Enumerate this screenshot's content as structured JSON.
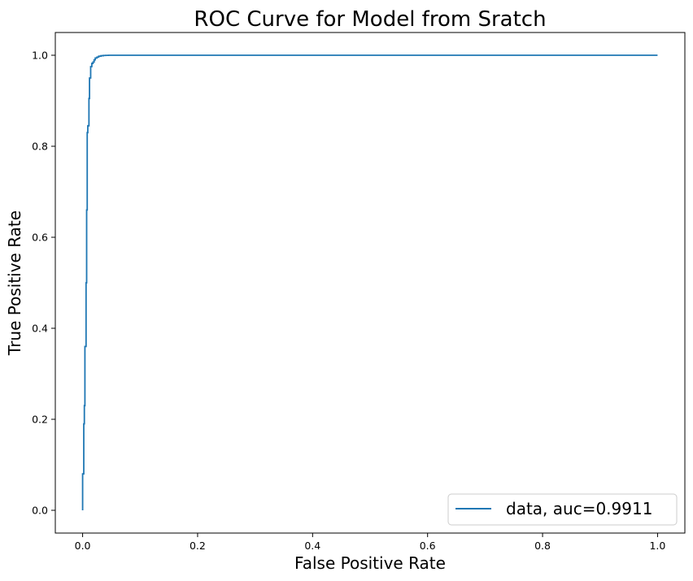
{
  "chart_data": {
    "type": "line",
    "title": "ROC Curve for Model from Sratch",
    "xlabel": "False Positive Rate",
    "ylabel": "True Positive Rate",
    "xlim": [
      -0.0475,
      1.0475
    ],
    "ylim": [
      -0.05,
      1.05
    ],
    "xticks": [
      0.0,
      0.2,
      0.4,
      0.6,
      0.8,
      1.0
    ],
    "xtick_labels": [
      "0.0",
      "0.2",
      "0.4",
      "0.6",
      "0.8",
      "1.0"
    ],
    "yticks": [
      0.0,
      0.2,
      0.4,
      0.6,
      0.8,
      1.0
    ],
    "ytick_labels": [
      "0.0",
      "0.2",
      "0.4",
      "0.6",
      "0.8",
      "1.0"
    ],
    "grid": false,
    "legend_position": "lower-right",
    "series": [
      {
        "name": "data, auc=0.9911",
        "color": "#1f77b4",
        "x": [
          0.0,
          0.0,
          0.002,
          0.002,
          0.003,
          0.003,
          0.004,
          0.004,
          0.006,
          0.006,
          0.007,
          0.007,
          0.008,
          0.008,
          0.009,
          0.009,
          0.011,
          0.011,
          0.012,
          0.012,
          0.014,
          0.014,
          0.016,
          0.016,
          0.018,
          0.018,
          0.02,
          0.02,
          0.022,
          0.022,
          0.025,
          0.025,
          0.028,
          0.028,
          0.032,
          0.032,
          0.036,
          0.036,
          0.04,
          0.04,
          0.045,
          0.045,
          1.0
        ],
        "y": [
          0.0,
          0.08,
          0.08,
          0.19,
          0.19,
          0.23,
          0.23,
          0.36,
          0.36,
          0.5,
          0.5,
          0.66,
          0.66,
          0.83,
          0.83,
          0.845,
          0.845,
          0.905,
          0.905,
          0.95,
          0.95,
          0.975,
          0.975,
          0.982,
          0.982,
          0.985,
          0.985,
          0.99,
          0.99,
          0.994,
          0.994,
          0.996,
          0.996,
          0.998,
          0.998,
          0.999,
          0.999,
          0.9995,
          0.9995,
          0.9998,
          0.9998,
          1.0,
          1.0
        ]
      }
    ]
  }
}
